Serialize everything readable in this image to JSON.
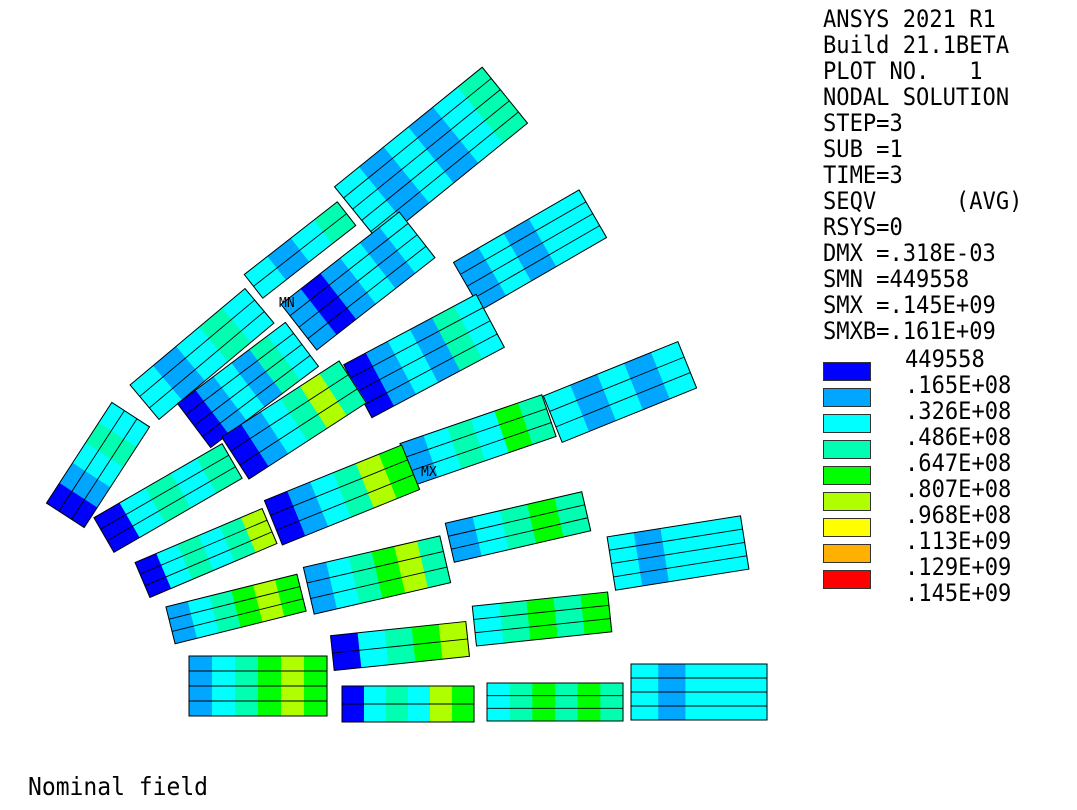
{
  "header_lines": [
    "ANSYS 2021 R1",
    "Build 21.1BETA",
    "PLOT NO.   1",
    "NODAL SOLUTION",
    "STEP=3",
    "SUB =1",
    "TIME=3",
    "SEQV      (AVG)",
    "RSYS=0",
    "DMX =.318E-03",
    "SMN =449558",
    "SMX =.145E+09",
    "SMXB=.161E+09"
  ],
  "legend": {
    "values": [
      "449558",
      ".165E+08",
      ".326E+08",
      ".486E+08",
      ".647E+08",
      ".807E+08",
      ".968E+08",
      ".113E+09",
      ".129E+09",
      ".145E+09"
    ],
    "colors": [
      "#0000FF",
      "#00A6FF",
      "#00FFFF",
      "#00FFB0",
      "#00FF00",
      "#B0FF00",
      "#FFFF00",
      "#FFB000",
      "#FF0000"
    ]
  },
  "markers": {
    "min_label": "MN",
    "max_label": "MX"
  },
  "footer": "Nominal field"
}
